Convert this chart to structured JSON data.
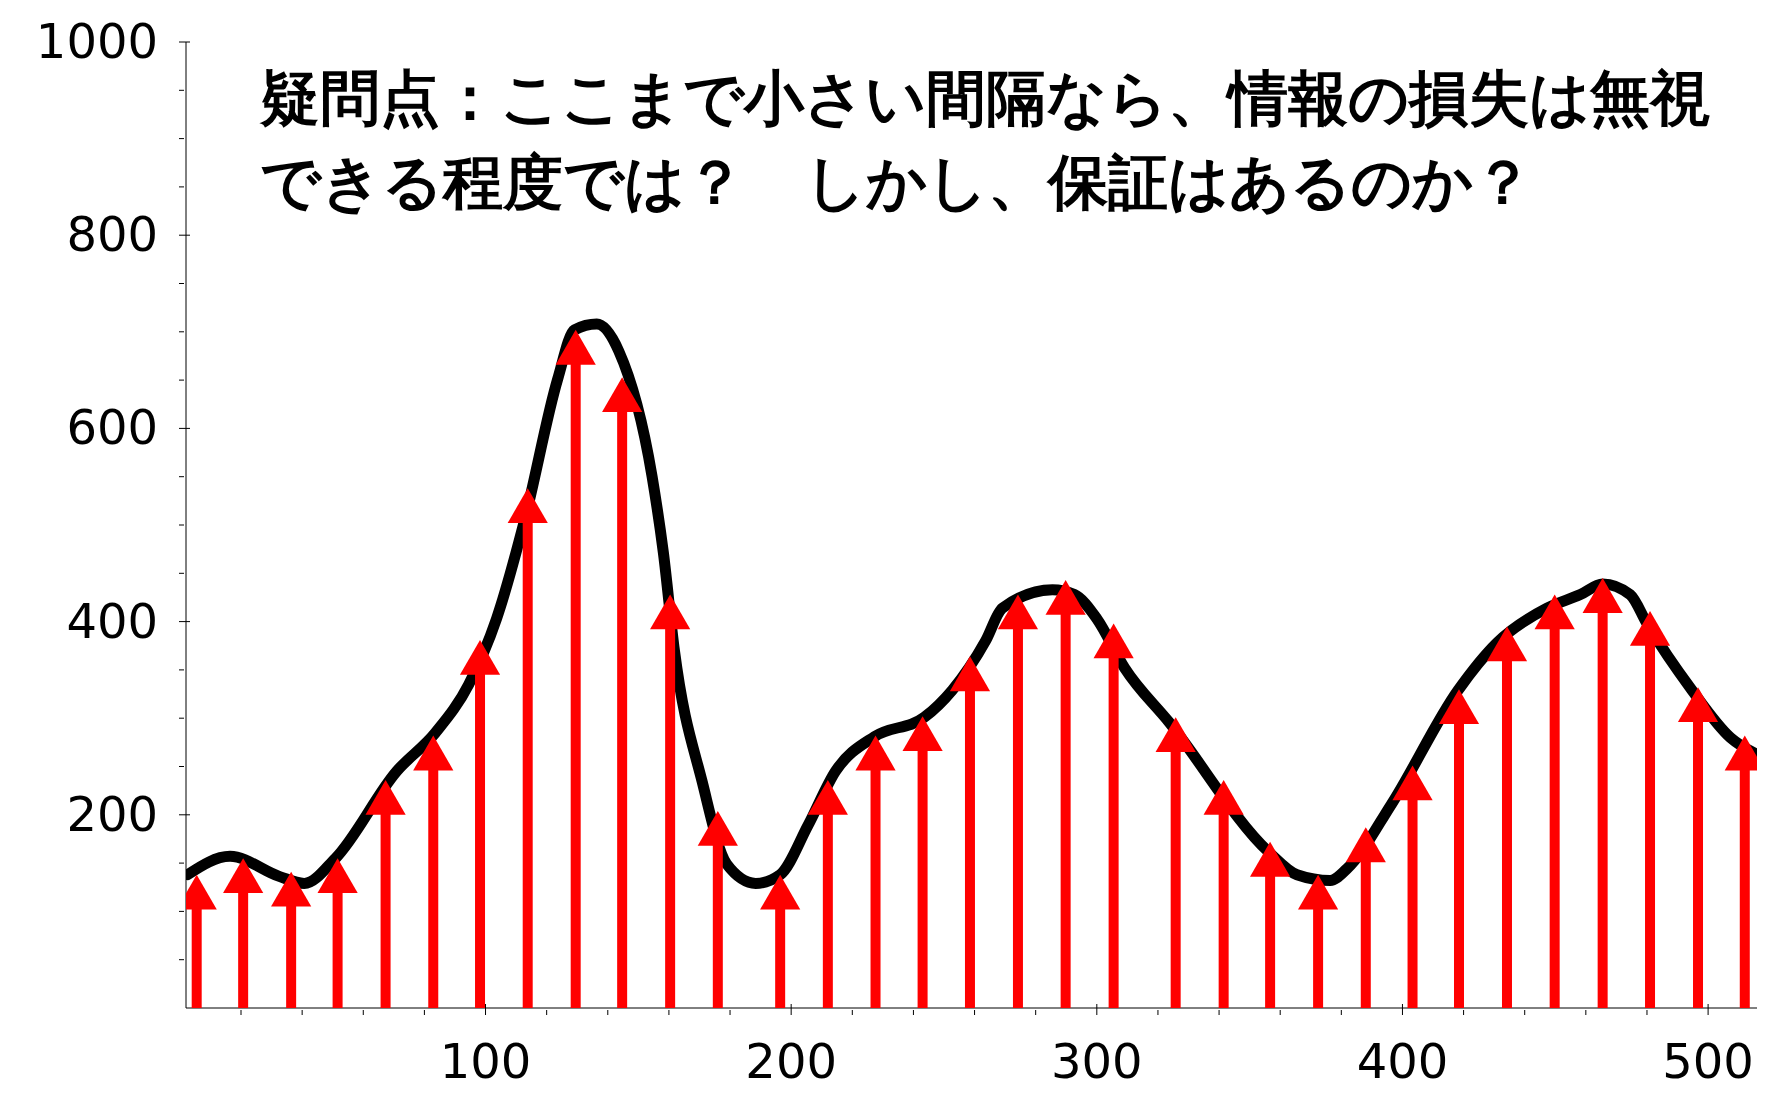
{
  "chart_data": {
    "type": "line",
    "annotations": [
      "疑問点：ここまで小さい間隔なら、情報の損失は無視できる程度では？　しかし、保証はあるのか？"
    ],
    "xlim": [
      2,
      516
    ],
    "xticks": [
      {
        "value": 20,
        "label": null
      },
      {
        "value": 40,
        "label": null
      },
      {
        "value": 60,
        "label": null
      },
      {
        "value": 80,
        "label": null
      },
      100,
      {
        "value": 120,
        "label": null
      },
      {
        "value": 140,
        "label": null
      },
      {
        "value": 160,
        "label": null
      },
      {
        "value": 180,
        "label": null
      },
      200,
      {
        "value": 220,
        "label": null
      },
      {
        "value": 240,
        "label": null
      },
      {
        "value": 260,
        "label": null
      },
      {
        "value": 280,
        "label": null
      },
      300,
      {
        "value": 320,
        "label": null
      },
      {
        "value": 340,
        "label": null
      },
      {
        "value": 360,
        "label": null
      },
      {
        "value": 380,
        "label": null
      },
      400,
      {
        "value": 420,
        "label": null
      },
      {
        "value": 440,
        "label": null
      },
      {
        "value": 460,
        "label": null
      },
      {
        "value": 480,
        "label": null
      },
      500
    ],
    "ylim": [
      0,
      1000
    ],
    "yticks": [
      {
        "value": 50,
        "label": null
      },
      {
        "value": 100,
        "label": null
      },
      {
        "value": 150,
        "label": null
      },
      200,
      {
        "value": 250,
        "label": null
      },
      {
        "value": 300,
        "label": null
      },
      {
        "value": 350,
        "label": null
      },
      400,
      {
        "value": 450,
        "label": null
      },
      {
        "value": 500,
        "label": null
      },
      {
        "value": 550,
        "label": null
      },
      600,
      {
        "value": 650,
        "label": null
      },
      {
        "value": 700,
        "label": null
      },
      {
        "value": 750,
        "label": null
      },
      800,
      {
        "value": 850,
        "label": null
      },
      {
        "value": 900,
        "label": null
      },
      {
        "value": 950,
        "label": null
      },
      1000
    ],
    "series": [
      {
        "color": "#000000",
        "marker": "none",
        "line_style": "solid",
        "x": [
          2.5,
          16.4,
          32.7,
          40.7,
          50.9,
          65.5,
          70.9,
          83.6,
          94.5,
          103.6,
          112.7,
          123.6,
          129.1,
          136.4,
          143.6,
          154.5,
          158.2,
          161.8,
          170.9,
          178.9,
          188.4,
          196.4,
          205.5,
          214.5,
          227.3,
          243.6,
          252.7,
          263.6,
          269.1,
          285.5,
          292.7,
          300,
          309.1,
          323.6,
          341.8,
          356.4,
          365.5,
          376.4,
          381.8,
          396.4,
          418.2,
          430.9,
          447.3,
          458.2,
          465.5,
          474.5,
          480,
          494.5,
          507.3,
          515.6
        ],
        "values": [
          138,
          157,
          136,
          129,
          155,
          null,
          245,
          285,
          335,
          403,
          504,
          651,
          702,
          708,
          680,
          550,
          471,
          370,
          234,
          149,
          129,
          138,
          189,
          245,
          281,
          301,
          329,
          380,
          414,
          433,
          428,
          403,
          352,
          296,
          null,
          161,
          138,
          132,
          144,
          211,
          329,
          378,
          414,
          428,
          439,
          428,
          398,
          330,
          280,
          263
        ]
      },
      {
        "type": "lollipop",
        "color": "#ff0000",
        "marker": "triangle",
        "x": [
          5.5,
          20.7,
          36.4,
          51.6,
          67.3,
          82.9,
          98.2,
          113.8,
          129.5,
          144.7,
          160.4,
          176,
          196.4,
          212,
          227.6,
          243,
          258.5,
          274.2,
          289.8,
          305.5,
          325.8,
          341.5,
          356.7,
          372.4,
          388,
          403.3,
          418.5,
          434.2,
          449.8,
          465.5,
          481,
          496.7,
          512
        ],
        "values": [
          114,
          131,
          117,
          131,
          212,
          258,
          357,
          514,
          678,
          629,
          404,
          180,
          114,
          212,
          258,
          278,
          340,
          404,
          419,
          374,
          277,
          212,
          148,
          114,
          163,
          227,
          306,
          371,
          404,
          421,
          387,
          308,
          258
        ]
      }
    ]
  }
}
